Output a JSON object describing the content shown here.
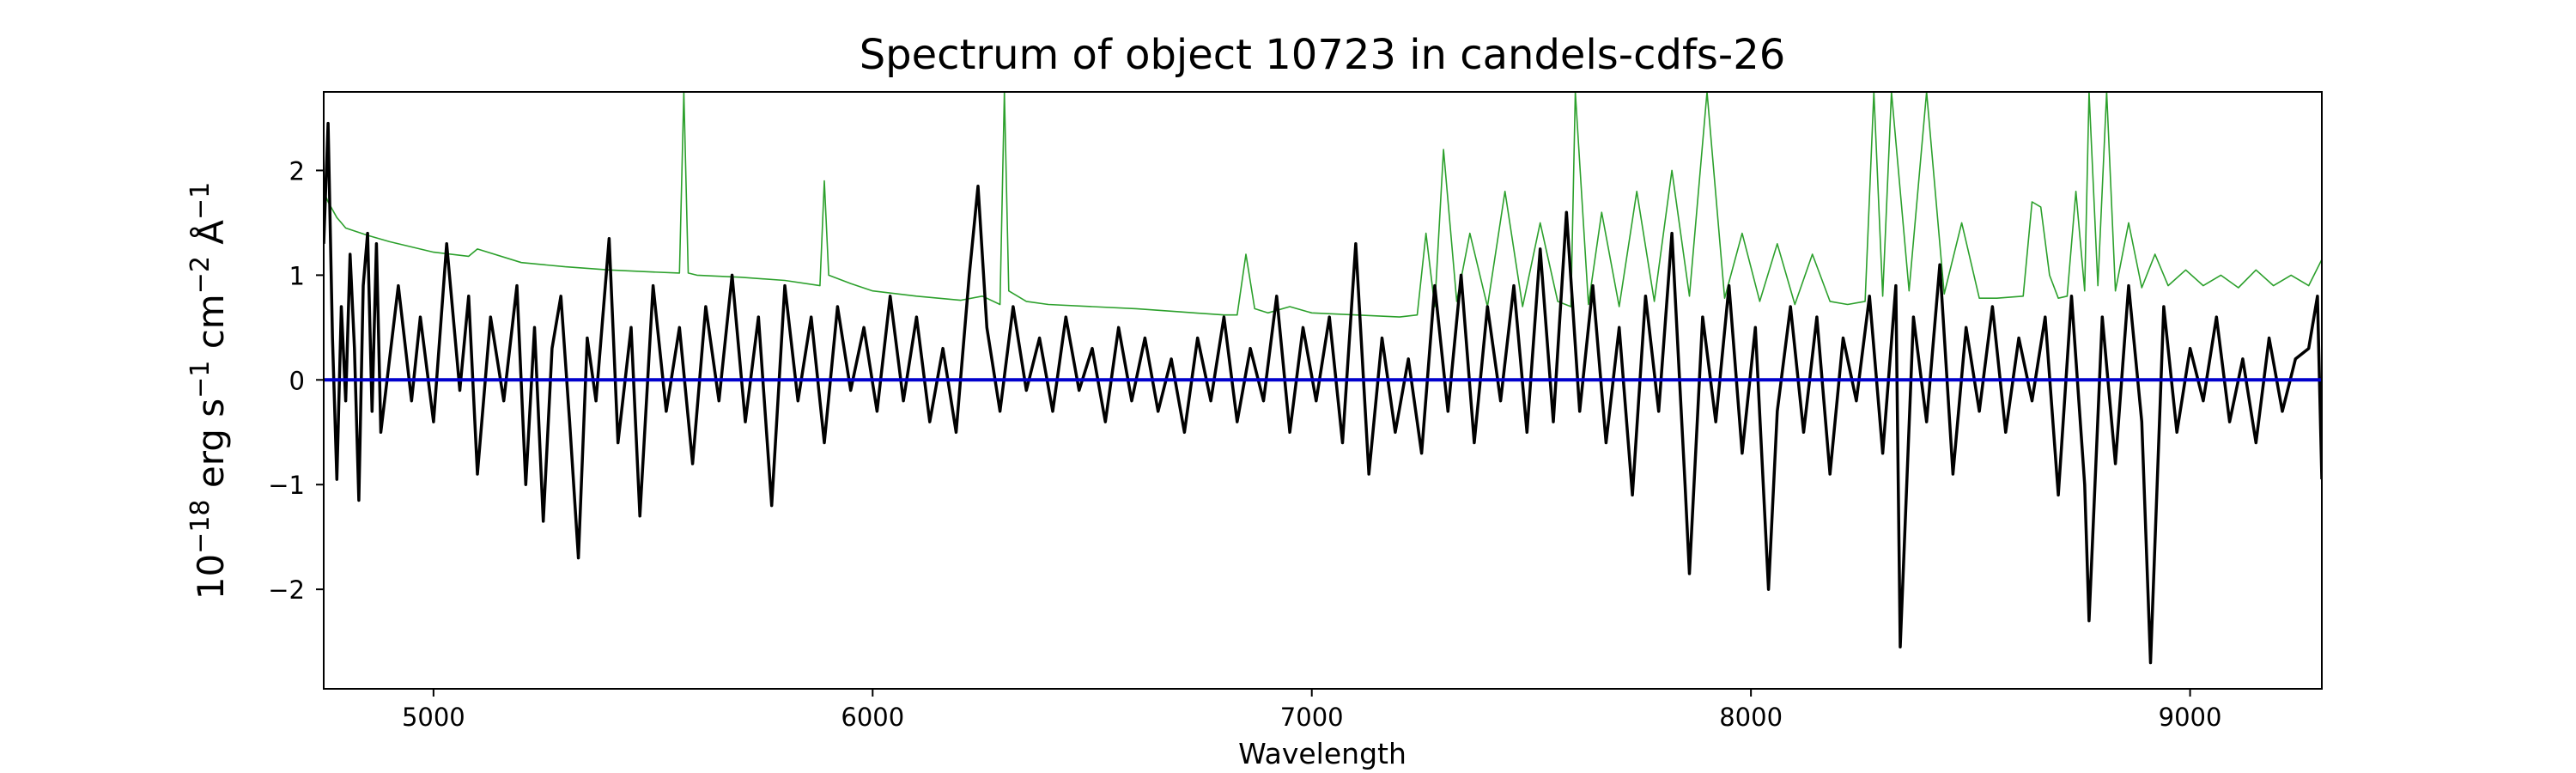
{
  "chart_data": {
    "type": "line",
    "title": "Spectrum of object 10723 in candels-cdfs-26",
    "xlabel": "Wavelength",
    "ylabel": {
      "base": "10",
      "exp1": "−18",
      "t1": " erg s",
      "exp2": "−1",
      "t2": " cm",
      "exp3": "−2",
      "t3": " Å",
      "exp4": "−1"
    },
    "xlim": [
      4750,
      9300
    ],
    "ylim": [
      -2.95,
      2.75
    ],
    "x_ticks": [
      5000,
      6000,
      7000,
      8000,
      9000
    ],
    "x_tick_labels": [
      "5000",
      "6000",
      "7000",
      "8000",
      "9000"
    ],
    "y_ticks": [
      2,
      1,
      0,
      -1,
      -2
    ],
    "y_tick_labels": [
      "2",
      "1",
      "0",
      "−1",
      "−2"
    ],
    "grid": false,
    "colors": {
      "flux": "#000000",
      "error": "#2ca02c",
      "zero": "#0000cc"
    },
    "series": [
      {
        "role": "flux",
        "x": [
          4750,
          4760,
          4770,
          4780,
          4790,
          4800,
          4810,
          4820,
          4830,
          4840,
          4850,
          4860,
          4870,
          4880,
          4900,
          4920,
          4950,
          4970,
          5000,
          5030,
          5060,
          5080,
          5100,
          5130,
          5160,
          5190,
          5210,
          5230,
          5250,
          5270,
          5290,
          5310,
          5330,
          5350,
          5370,
          5400,
          5420,
          5450,
          5470,
          5500,
          5530,
          5560,
          5590,
          5620,
          5650,
          5680,
          5710,
          5740,
          5770,
          5800,
          5830,
          5860,
          5890,
          5920,
          5950,
          5980,
          6010,
          6040,
          6070,
          6100,
          6130,
          6160,
          6190,
          6220,
          6240,
          6260,
          6290,
          6320,
          6350,
          6380,
          6410,
          6440,
          6470,
          6500,
          6530,
          6560,
          6590,
          6620,
          6650,
          6680,
          6710,
          6740,
          6770,
          6800,
          6830,
          6860,
          6890,
          6920,
          6950,
          6980,
          7010,
          7040,
          7070,
          7100,
          7130,
          7160,
          7190,
          7220,
          7250,
          7280,
          7310,
          7340,
          7370,
          7400,
          7430,
          7460,
          7490,
          7520,
          7550,
          7580,
          7610,
          7640,
          7670,
          7700,
          7730,
          7760,
          7790,
          7820,
          7850,
          7860,
          7890,
          7920,
          7950,
          7980,
          8010,
          8040,
          8060,
          8090,
          8120,
          8150,
          8180,
          8210,
          8240,
          8270,
          8300,
          8330,
          8340,
          8370,
          8400,
          8430,
          8460,
          8490,
          8520,
          8550,
          8580,
          8610,
          8640,
          8670,
          8700,
          8730,
          8760,
          8770,
          8800,
          8830,
          8860,
          8890,
          8910,
          8940,
          8970,
          9000,
          9030,
          9060,
          9090,
          9120,
          9150,
          9180,
          9210,
          9240,
          9270,
          9290,
          9300
        ],
        "y": [
          1.3,
          2.45,
          0.4,
          -0.95,
          0.7,
          -0.2,
          1.2,
          0.3,
          -1.15,
          0.9,
          1.4,
          -0.3,
          1.3,
          -0.5,
          0.2,
          0.9,
          -0.2,
          0.6,
          -0.4,
          1.3,
          -0.1,
          0.8,
          -0.9,
          0.6,
          -0.2,
          0.9,
          -1.0,
          0.5,
          -1.35,
          0.3,
          0.8,
          -0.4,
          -1.7,
          0.4,
          -0.2,
          1.35,
          -0.6,
          0.5,
          -1.3,
          0.9,
          -0.3,
          0.5,
          -0.8,
          0.7,
          -0.2,
          1.0,
          -0.4,
          0.6,
          -1.2,
          0.9,
          -0.2,
          0.6,
          -0.6,
          0.7,
          -0.1,
          0.5,
          -0.3,
          0.8,
          -0.2,
          0.6,
          -0.4,
          0.3,
          -0.5,
          1.0,
          1.85,
          0.5,
          -0.3,
          0.7,
          -0.1,
          0.4,
          -0.3,
          0.6,
          -0.1,
          0.3,
          -0.4,
          0.5,
          -0.2,
          0.4,
          -0.3,
          0.2,
          -0.5,
          0.4,
          -0.2,
          0.6,
          -0.4,
          0.3,
          -0.2,
          0.8,
          -0.5,
          0.5,
          -0.2,
          0.6,
          -0.6,
          1.3,
          -0.9,
          0.4,
          -0.5,
          0.2,
          -0.7,
          0.9,
          -0.3,
          1.0,
          -0.6,
          0.7,
          -0.2,
          0.9,
          -0.5,
          1.25,
          -0.4,
          1.6,
          -0.3,
          0.9,
          -0.6,
          0.5,
          -1.1,
          0.8,
          -0.3,
          1.4,
          -1.0,
          -1.85,
          0.6,
          -0.4,
          0.9,
          -0.7,
          0.5,
          -2.0,
          -0.3,
          0.7,
          -0.5,
          0.6,
          -0.9,
          0.4,
          -0.2,
          0.8,
          -0.7,
          0.9,
          -2.55,
          0.6,
          -0.4,
          1.1,
          -0.9,
          0.5,
          -0.3,
          0.7,
          -0.5,
          0.4,
          -0.2,
          0.6,
          -1.1,
          0.8,
          -1.0,
          -2.3,
          0.6,
          -0.8,
          0.9,
          -0.4,
          -2.7,
          0.7,
          -0.5,
          0.3,
          -0.2,
          0.6,
          -0.4,
          0.2,
          -0.6,
          0.4,
          -0.3,
          0.2,
          0.3,
          0.8,
          -0.95
        ]
      },
      {
        "role": "error",
        "x": [
          4750,
          4760,
          4780,
          4790,
          4800,
          4850,
          4900,
          4950,
          5000,
          5080,
          5100,
          5200,
          5300,
          5400,
          5500,
          5560,
          5570,
          5580,
          5600,
          5700,
          5800,
          5880,
          5890,
          5900,
          5950,
          6000,
          6100,
          6200,
          6250,
          6290,
          6300,
          6310,
          6350,
          6400,
          6500,
          6600,
          6700,
          6800,
          6830,
          6850,
          6870,
          6900,
          6950,
          7000,
          7100,
          7200,
          7240,
          7260,
          7280,
          7300,
          7330,
          7360,
          7400,
          7440,
          7480,
          7520,
          7560,
          7590,
          7600,
          7630,
          7660,
          7700,
          7740,
          7780,
          7820,
          7860,
          7900,
          7940,
          7980,
          8020,
          8060,
          8100,
          8140,
          8180,
          8220,
          8260,
          8280,
          8300,
          8320,
          8360,
          8400,
          8440,
          8480,
          8520,
          8560,
          8620,
          8640,
          8660,
          8680,
          8700,
          8720,
          8740,
          8760,
          8770,
          8790,
          8810,
          8830,
          8860,
          8890,
          8920,
          8950,
          8990,
          9030,
          9070,
          9110,
          9150,
          9190,
          9230,
          9270,
          9300
        ],
        "y": [
          1.8,
          1.7,
          1.55,
          1.5,
          1.45,
          1.38,
          1.32,
          1.27,
          1.22,
          1.18,
          1.25,
          1.12,
          1.08,
          1.05,
          1.03,
          1.02,
          2.75,
          1.02,
          1.0,
          0.98,
          0.95,
          0.9,
          1.9,
          1.0,
          0.92,
          0.85,
          0.8,
          0.76,
          0.8,
          0.72,
          2.75,
          0.85,
          0.75,
          0.72,
          0.7,
          0.68,
          0.65,
          0.62,
          0.62,
          1.2,
          0.68,
          0.64,
          0.7,
          0.64,
          0.62,
          0.6,
          0.62,
          1.4,
          0.7,
          2.2,
          0.75,
          1.4,
          0.7,
          1.8,
          0.7,
          1.5,
          0.75,
          0.7,
          2.75,
          0.72,
          1.6,
          0.7,
          1.8,
          0.75,
          2.0,
          0.8,
          2.75,
          0.78,
          1.4,
          0.75,
          1.3,
          0.72,
          1.2,
          0.75,
          0.72,
          0.75,
          2.75,
          0.8,
          2.75,
          0.85,
          2.75,
          0.82,
          1.5,
          0.78,
          0.78,
          0.8,
          1.7,
          1.65,
          1.0,
          0.78,
          0.8,
          1.8,
          0.85,
          2.75,
          0.9,
          2.75,
          0.85,
          1.5,
          0.88,
          1.2,
          0.9,
          1.05,
          0.9,
          1.0,
          0.88,
          1.05,
          0.9,
          1.0,
          0.9,
          1.15
        ]
      }
    ]
  }
}
